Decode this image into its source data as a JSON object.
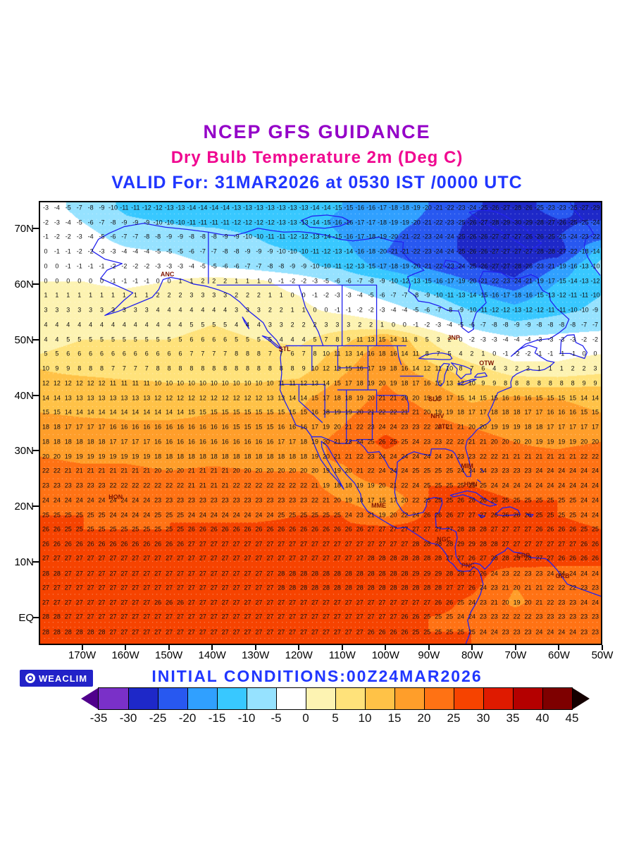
{
  "titles": {
    "line1": "NCEP GFS GUIDANCE",
    "line2": "Dry Bulb Temperature 2m (Deg C)",
    "line3": "VALID For: 31MAR2026 at 0530 IST /0000 UTC"
  },
  "footer": {
    "logo_text": "WEACLIM",
    "initial_conditions": "INITIAL CONDITIONS:00Z24MAR2026"
  },
  "colors": {
    "title1": "#9400c8",
    "title2": "#f00890",
    "title3": "#2036ff",
    "initial_conditions": "#2036ff",
    "badge_bg": "#2222c8",
    "coastline": "#2222ee",
    "grid_numbers": "#111111",
    "stations": "#801400"
  },
  "axes": {
    "lon_range": [
      -180,
      -50
    ],
    "lat_range": [
      -5,
      75
    ],
    "lat_ticks": [
      {
        "label": "70N",
        "value": 70
      },
      {
        "label": "60N",
        "value": 60
      },
      {
        "label": "50N",
        "value": 50
      },
      {
        "label": "40N",
        "value": 40
      },
      {
        "label": "30N",
        "value": 30
      },
      {
        "label": "20N",
        "value": 20
      },
      {
        "label": "10N",
        "value": 10
      },
      {
        "label": "EQ",
        "value": 0
      }
    ],
    "lon_ticks": [
      {
        "label": "170W",
        "value": -170
      },
      {
        "label": "160W",
        "value": -160
      },
      {
        "label": "150W",
        "value": -150
      },
      {
        "label": "140W",
        "value": -140
      },
      {
        "label": "130W",
        "value": -130
      },
      {
        "label": "120W",
        "value": -120
      },
      {
        "label": "110W",
        "value": -110
      },
      {
        "label": "100W",
        "value": -100
      },
      {
        "label": "90W",
        "value": -90
      },
      {
        "label": "80W",
        "value": -80
      },
      {
        "label": "70W",
        "value": -70
      },
      {
        "label": "60W",
        "value": -60
      },
      {
        "label": "50W",
        "value": -50
      }
    ]
  },
  "stations": [
    {
      "id": "ANC",
      "lon": -150.5,
      "lat": 62.0
    },
    {
      "id": "STL",
      "lon": -123.3,
      "lat": 48.4
    },
    {
      "id": "JNP",
      "lon": -84.1,
      "lat": 50.5
    },
    {
      "id": "OTW",
      "lon": -76.5,
      "lat": 45.8
    },
    {
      "id": "SLC",
      "lon": -88.5,
      "lat": 39.3
    },
    {
      "id": "NHV",
      "lon": -87.9,
      "lat": 36.3
    },
    {
      "id": "ATL",
      "lon": -86.5,
      "lat": 34.4
    },
    {
      "id": "MIM",
      "lon": -81.0,
      "lat": 27.2
    },
    {
      "id": "HVN",
      "lon": -80.2,
      "lat": 23.9
    },
    {
      "id": "HON",
      "lon": -162.5,
      "lat": 21.6
    },
    {
      "id": "MME",
      "lon": -101.5,
      "lat": 20.1
    },
    {
      "id": "NGC",
      "lon": -86.4,
      "lat": 13.9
    },
    {
      "id": "PNC",
      "lon": -80.8,
      "lat": 9.2
    },
    {
      "id": "CRP",
      "lon": -68.0,
      "lat": 11.0
    },
    {
      "id": "GRB",
      "lon": -58.9,
      "lat": 7.3
    }
  ],
  "chart_data": {
    "type": "heatmap",
    "title": "NCEP GFS GUIDANCE - Dry Bulb Temperature 2m (Deg C)",
    "units": "Deg C",
    "lon_anchors": [
      -180,
      -170,
      -160,
      -150,
      -140,
      -130,
      -120,
      -110,
      -100,
      -90,
      -80,
      -70,
      -60,
      -50
    ],
    "lat_rows": [
      74,
      71.3,
      68.7,
      66,
      63.4,
      60.7,
      58.1,
      55.4,
      52.8,
      50.1,
      47.5,
      44.8,
      42.2,
      39.5,
      36.9,
      34.2,
      31.6,
      28.9,
      26.3,
      23.6,
      21,
      18.3,
      15.7,
      13,
      10.4,
      7.7,
      5.1,
      2.4,
      -0.2,
      -2.9
    ],
    "values": [
      [
        -2,
        -7,
        -11,
        -13,
        -14,
        -13,
        -13,
        -15,
        -17,
        -20,
        -24,
        -28,
        -22,
        -30
      ],
      [
        -1,
        -5,
        -9,
        -10,
        -11,
        -12,
        -13,
        -16,
        -18,
        -21,
        -26,
        -30,
        -26,
        -24
      ],
      [
        -1,
        -3,
        -7,
        -9,
        -8,
        -10,
        -12,
        -15,
        -19,
        -23,
        -26,
        -27,
        -25,
        -22
      ],
      [
        0,
        -2,
        -4,
        -5,
        -7,
        -9,
        -10,
        -13,
        -20,
        -23,
        -26,
        -27,
        -28,
        -12
      ],
      [
        0,
        -1,
        -2,
        -3,
        -5,
        -7,
        -9,
        -11,
        -17,
        -21,
        -25,
        -28,
        -20,
        -8
      ],
      [
        0,
        0,
        -1,
        0,
        2,
        1,
        -2,
        -6,
        -9,
        -15,
        -20,
        -24,
        -15,
        -11
      ],
      [
        1,
        1,
        1,
        2,
        3,
        2,
        0,
        -3,
        -6,
        -9,
        -14,
        -18,
        -12,
        -10
      ],
      [
        3,
        3,
        3,
        4,
        4,
        3,
        1,
        -1,
        -3,
        -6,
        -10,
        -13,
        -11,
        -9
      ],
      [
        4,
        4,
        4,
        4,
        5,
        4,
        2,
        3,
        1,
        -2,
        -6,
        -9,
        -8,
        -7
      ],
      [
        4,
        5,
        5,
        5,
        6,
        5,
        4,
        8,
        16,
        5,
        -2,
        -4,
        -3,
        -2
      ],
      [
        5,
        6,
        6,
        6,
        7,
        8,
        6,
        12,
        18,
        8,
        2,
        -2,
        -1,
        0
      ],
      [
        10,
        8,
        7,
        8,
        8,
        8,
        8,
        14,
        19,
        12,
        7,
        2,
        1,
        3
      ],
      [
        12,
        12,
        11,
        10,
        10,
        10,
        11,
        16,
        20,
        16,
        10,
        8,
        8,
        9
      ],
      [
        14,
        13,
        13,
        12,
        12,
        12,
        14,
        18,
        21,
        19,
        14,
        16,
        15,
        14
      ],
      [
        15,
        14,
        14,
        14,
        15,
        15,
        15,
        19,
        22,
        20,
        17,
        18,
        16,
        15
      ],
      [
        18,
        17,
        16,
        16,
        16,
        15,
        16,
        20,
        24,
        22,
        20,
        19,
        17,
        17
      ],
      [
        18,
        18,
        17,
        16,
        16,
        16,
        17,
        22,
        26,
        23,
        21,
        20,
        19,
        20
      ],
      [
        20,
        19,
        19,
        18,
        18,
        18,
        18,
        21,
        24,
        24,
        23,
        21,
        21,
        22
      ],
      [
        22,
        21,
        21,
        20,
        21,
        20,
        20,
        19,
        24,
        25,
        24,
        23,
        24,
        24
      ],
      [
        23,
        23,
        22,
        22,
        21,
        22,
        22,
        18,
        20,
        25,
        25,
        24,
        24,
        24
      ],
      [
        24,
        24,
        24,
        23,
        23,
        23,
        23,
        20,
        15,
        25,
        26,
        25,
        25,
        24
      ],
      [
        25,
        25,
        24,
        25,
        24,
        24,
        25,
        25,
        19,
        26,
        27,
        26,
        25,
        24
      ],
      [
        26,
        25,
        25,
        25,
        26,
        26,
        26,
        26,
        27,
        27,
        28,
        27,
        26,
        25
      ],
      [
        26,
        26,
        26,
        26,
        27,
        27,
        27,
        27,
        27,
        28,
        29,
        27,
        27,
        26
      ],
      [
        27,
        27,
        27,
        27,
        27,
        27,
        27,
        27,
        28,
        28,
        26,
        29,
        26,
        26
      ],
      [
        28,
        27,
        27,
        27,
        27,
        27,
        28,
        28,
        28,
        29,
        27,
        22,
        24,
        24
      ],
      [
        27,
        27,
        27,
        27,
        27,
        27,
        28,
        28,
        28,
        28,
        26,
        20,
        22,
        23
      ],
      [
        27,
        27,
        27,
        26,
        27,
        27,
        27,
        27,
        27,
        27,
        24,
        19,
        23,
        24
      ],
      [
        28,
        27,
        27,
        27,
        27,
        27,
        27,
        27,
        27,
        25,
        24,
        22,
        23,
        23
      ],
      [
        28,
        28,
        27,
        27,
        27,
        27,
        27,
        27,
        26,
        25,
        25,
        23,
        24,
        23
      ]
    ],
    "display_cols": 50,
    "colorbar": {
      "ticks": [
        -35,
        -30,
        -25,
        -20,
        -15,
        -10,
        -5,
        0,
        5,
        10,
        15,
        20,
        25,
        30,
        35,
        40,
        45
      ],
      "bin_colors": [
        "#7a30c8",
        "#1e28c8",
        "#2858f0",
        "#30a0ff",
        "#38c8ff",
        "#96e2ff",
        "#ffffff",
        "#fdf3b2",
        "#ffe27a",
        "#ffc247",
        "#ff9e2a",
        "#ff7214",
        "#f64300",
        "#df1a00",
        "#b40000",
        "#7e0000"
      ],
      "below_color": "#50008c",
      "above_color": "#140000"
    }
  }
}
